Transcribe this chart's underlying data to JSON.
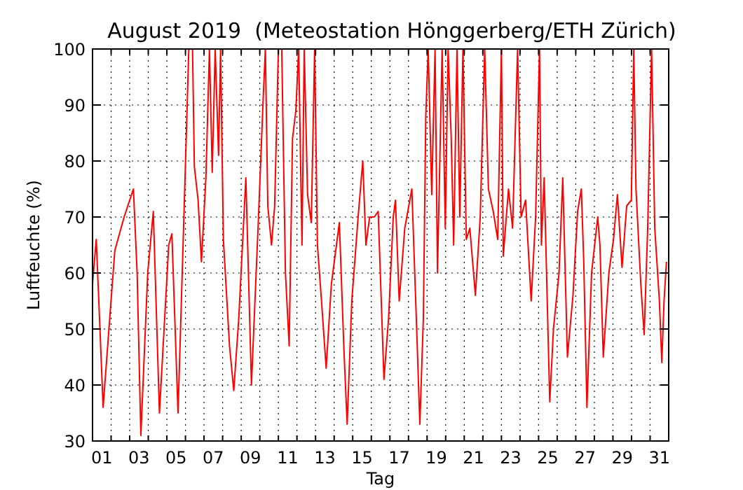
{
  "chart_data": {
    "type": "line",
    "title": "August 2019  (Meteostation Hönggerberg/ETH Zürich)",
    "xlabel": "Tag",
    "ylabel": "Luftfeuchte (%)",
    "grid": true,
    "xlim": [
      1,
      32
    ],
    "ylim": [
      30,
      100
    ],
    "yticks": [
      30,
      40,
      50,
      60,
      70,
      80,
      90,
      100
    ],
    "xticks": [
      {
        "value": 1.5,
        "label": "01"
      },
      {
        "value": 3.5,
        "label": "03"
      },
      {
        "value": 5.5,
        "label": "05"
      },
      {
        "value": 7.5,
        "label": "07"
      },
      {
        "value": 9.5,
        "label": "09"
      },
      {
        "value": 11.5,
        "label": "11"
      },
      {
        "value": 13.5,
        "label": "13"
      },
      {
        "value": 15.5,
        "label": "15"
      },
      {
        "value": 17.5,
        "label": "17"
      },
      {
        "value": 19.5,
        "label": "19"
      },
      {
        "value": 21.5,
        "label": "21"
      },
      {
        "value": 23.5,
        "label": "23"
      },
      {
        "value": 25.5,
        "label": "25"
      },
      {
        "value": 27.5,
        "label": "27"
      },
      {
        "value": 29.5,
        "label": "29"
      },
      {
        "value": 31.5,
        "label": "31"
      },
      {
        "value": 2,
        "label": null
      },
      {
        "value": 3,
        "label": null
      },
      {
        "value": 4,
        "label": null
      },
      {
        "value": 5,
        "label": null
      },
      {
        "value": 6,
        "label": null
      },
      {
        "value": 7,
        "label": null
      },
      {
        "value": 8,
        "label": null
      },
      {
        "value": 9,
        "label": null
      },
      {
        "value": 10,
        "label": null
      },
      {
        "value": 11,
        "label": null
      },
      {
        "value": 12,
        "label": null
      },
      {
        "value": 13,
        "label": null
      },
      {
        "value": 14,
        "label": null
      },
      {
        "value": 15,
        "label": null
      },
      {
        "value": 16,
        "label": null
      },
      {
        "value": 17,
        "label": null
      },
      {
        "value": 18,
        "label": null
      },
      {
        "value": 19,
        "label": null
      },
      {
        "value": 20,
        "label": null
      },
      {
        "value": 21,
        "label": null
      },
      {
        "value": 22,
        "label": null
      },
      {
        "value": 23,
        "label": null
      },
      {
        "value": 24,
        "label": null
      },
      {
        "value": 25,
        "label": null
      },
      {
        "value": 26,
        "label": null
      },
      {
        "value": 27,
        "label": null
      },
      {
        "value": 28,
        "label": null
      },
      {
        "value": 29,
        "label": null
      },
      {
        "value": 30,
        "label": null
      },
      {
        "value": 31,
        "label": null
      }
    ],
    "series": [
      {
        "color": "#ff0000",
        "line_style": "solid",
        "x": [
          1.0,
          1.2,
          1.4,
          1.57,
          1.95,
          2.2,
          2.7,
          3.2,
          3.4,
          3.6,
          3.97,
          4.27,
          4.6,
          5.1,
          5.27,
          5.6,
          5.97,
          6.18,
          6.38,
          6.48,
          6.68,
          6.86,
          7.1,
          7.29,
          7.44,
          7.6,
          7.78,
          7.89,
          8.04,
          8.37,
          8.6,
          8.87,
          9.25,
          9.55,
          9.93,
          10.18,
          10.3,
          10.43,
          10.63,
          10.8,
          11.0,
          11.18,
          11.38,
          11.58,
          11.76,
          11.94,
          12.09,
          12.27,
          12.39,
          12.57,
          12.77,
          12.95,
          13.1,
          13.32,
          13.57,
          13.85,
          14.28,
          14.53,
          14.7,
          14.95,
          15.29,
          15.54,
          15.71,
          15.91,
          16.16,
          16.37,
          16.68,
          16.93,
          17.18,
          17.3,
          17.5,
          17.8,
          18.18,
          18.43,
          18.61,
          18.8,
          18.93,
          19.06,
          19.25,
          19.43,
          19.56,
          19.81,
          19.98,
          20.13,
          20.3,
          20.43,
          20.61,
          20.76,
          20.93,
          21.11,
          21.3,
          21.6,
          21.86,
          22.1,
          22.3,
          22.56,
          22.8,
          23.0,
          23.1,
          23.38,
          23.6,
          23.87,
          24.06,
          24.3,
          24.6,
          24.84,
          25.05,
          25.15,
          25.3,
          25.6,
          25.8,
          26.1,
          26.3,
          26.55,
          26.85,
          27.1,
          27.3,
          27.43,
          27.6,
          27.85,
          28.18,
          28.3,
          28.48,
          28.78,
          29.03,
          29.24,
          29.49,
          29.74,
          29.99,
          30.12,
          30.24,
          30.5,
          30.68,
          30.87,
          31.08,
          31.25,
          31.5,
          31.63,
          31.75,
          31.88
        ],
        "values": [
          58,
          66,
          50,
          36,
          53,
          64,
          70,
          75,
          60,
          31,
          60,
          71,
          35,
          65,
          67,
          35,
          76,
          100,
          100,
          79,
          73,
          62,
          77,
          100,
          78,
          100,
          81,
          100,
          66,
          47,
          39,
          52,
          77,
          40,
          70,
          91,
          100,
          72,
          65,
          72,
          100,
          100,
          60,
          47,
          84,
          89,
          100,
          65,
          100,
          74,
          69,
          100,
          65,
          55,
          43,
          58,
          69,
          46,
          33,
          55,
          70,
          80,
          65,
          70,
          70,
          71,
          41,
          52,
          70,
          73,
          55,
          68,
          75,
          51,
          33,
          52,
          88,
          100,
          74,
          100,
          60,
          100,
          68,
          100,
          84,
          65,
          100,
          70,
          100,
          66,
          68,
          56,
          70,
          100,
          75,
          71,
          66,
          100,
          63,
          75,
          68,
          100,
          70,
          73,
          55,
          70,
          100,
          65,
          77,
          37,
          50,
          60,
          77,
          45,
          56,
          71,
          75,
          62,
          36,
          60,
          70,
          65,
          45,
          60,
          66,
          74,
          61,
          72,
          73,
          100,
          75,
          58,
          49,
          68,
          100,
          68,
          55,
          44,
          55,
          62
        ]
      }
    ]
  }
}
